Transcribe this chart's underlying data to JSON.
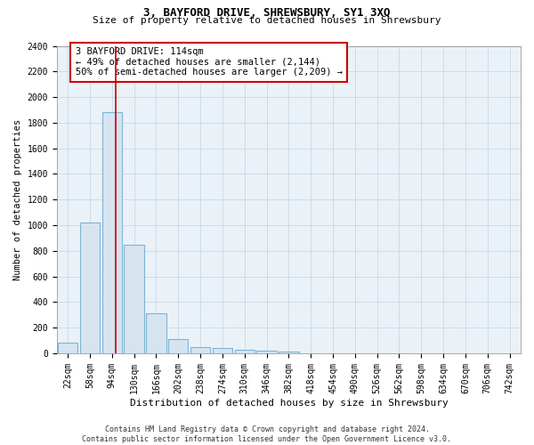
{
  "title1": "3, BAYFORD DRIVE, SHREWSBURY, SY1 3XQ",
  "title2": "Size of property relative to detached houses in Shrewsbury",
  "xlabel": "Distribution of detached houses by size in Shrewsbury",
  "ylabel": "Number of detached properties",
  "bar_labels": [
    "22sqm",
    "58sqm",
    "94sqm",
    "130sqm",
    "166sqm",
    "202sqm",
    "238sqm",
    "274sqm",
    "310sqm",
    "346sqm",
    "382sqm",
    "418sqm",
    "454sqm",
    "490sqm",
    "526sqm",
    "562sqm",
    "598sqm",
    "634sqm",
    "670sqm",
    "706sqm",
    "742sqm"
  ],
  "bar_values": [
    80,
    1020,
    1880,
    850,
    310,
    110,
    50,
    40,
    25,
    20,
    15,
    0,
    0,
    0,
    0,
    0,
    0,
    0,
    0,
    0,
    0
  ],
  "bar_color": "#d6e4f0",
  "bar_edge_color": "#7fb3d3",
  "vline_color": "#cc0000",
  "vline_x": 2.15,
  "annotation_text": "3 BAYFORD DRIVE: 114sqm\n← 49% of detached houses are smaller (2,144)\n50% of semi-detached houses are larger (2,209) →",
  "annotation_box_color": "white",
  "annotation_box_edge_color": "#cc0000",
  "ylim": [
    0,
    2400
  ],
  "yticks": [
    0,
    200,
    400,
    600,
    800,
    1000,
    1200,
    1400,
    1600,
    1800,
    2000,
    2200,
    2400
  ],
  "grid_color": "#c8d8e8",
  "bg_color": "#eaf2f8",
  "footer_text": "Contains HM Land Registry data © Crown copyright and database right 2024.\nContains public sector information licensed under the Open Government Licence v3.0.",
  "title1_fontsize": 9,
  "title2_fontsize": 8,
  "xlabel_fontsize": 8,
  "ylabel_fontsize": 7.5,
  "tick_fontsize": 7,
  "annotation_fontsize": 7.5,
  "footer_fontsize": 6
}
